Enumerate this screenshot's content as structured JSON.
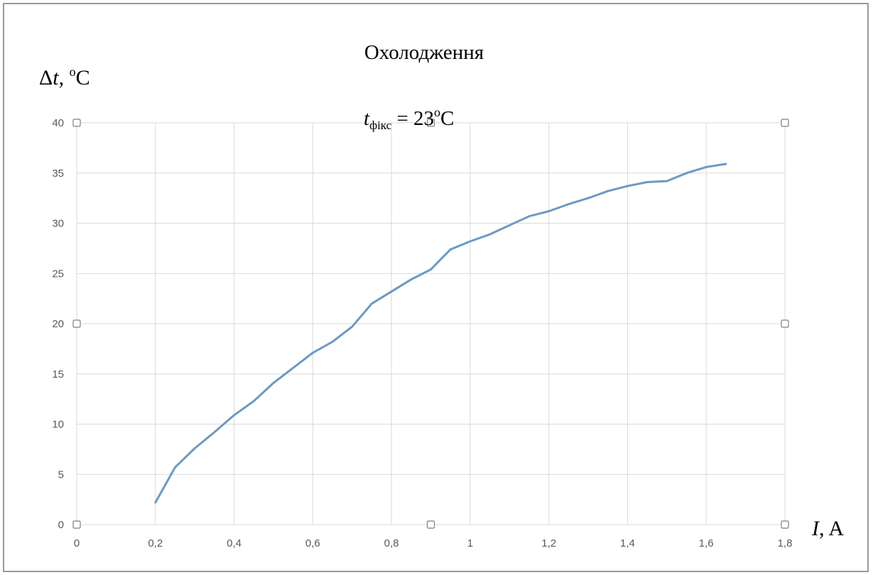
{
  "chart_data": {
    "type": "line",
    "title": "Охолодження",
    "subtitle": {
      "var": "t",
      "sub": "фікс",
      "rest": " = 23",
      "sup": "o",
      "unit": "C"
    },
    "ylabel": {
      "delta": "Δ",
      "var": "t",
      "rest": ", ",
      "sup": "o",
      "unit": "C"
    },
    "xlabel": {
      "var": "I",
      "rest": ", A"
    },
    "xlim": [
      0,
      1.8
    ],
    "ylim": [
      0,
      40
    ],
    "x_ticks": [
      "0",
      "0,2",
      "0,4",
      "0,6",
      "0,8",
      "1",
      "1,2",
      "1,4",
      "1,6",
      "1,8"
    ],
    "y_ticks": [
      "0",
      "5",
      "10",
      "15",
      "20",
      "25",
      "30",
      "35",
      "40"
    ],
    "grid": true,
    "series": [
      {
        "color": "#6a9ac4",
        "x": [
          0.2,
          0.25,
          0.3,
          0.35,
          0.4,
          0.45,
          0.5,
          0.55,
          0.6,
          0.65,
          0.7,
          0.75,
          0.8,
          0.85,
          0.9,
          0.95,
          1.0,
          1.05,
          1.1,
          1.15,
          1.2,
          1.25,
          1.3,
          1.35,
          1.4,
          1.45,
          1.5,
          1.55,
          1.6,
          1.65
        ],
        "y": [
          2.2,
          5.7,
          7.6,
          9.2,
          10.9,
          12.3,
          14.1,
          15.6,
          17.1,
          18.2,
          19.7,
          22.0,
          23.2,
          24.4,
          25.4,
          27.4,
          28.2,
          28.9,
          29.8,
          30.7,
          31.2,
          31.9,
          32.5,
          33.2,
          33.7,
          34.1,
          34.2,
          35.0,
          35.6,
          35.9
        ]
      }
    ]
  }
}
